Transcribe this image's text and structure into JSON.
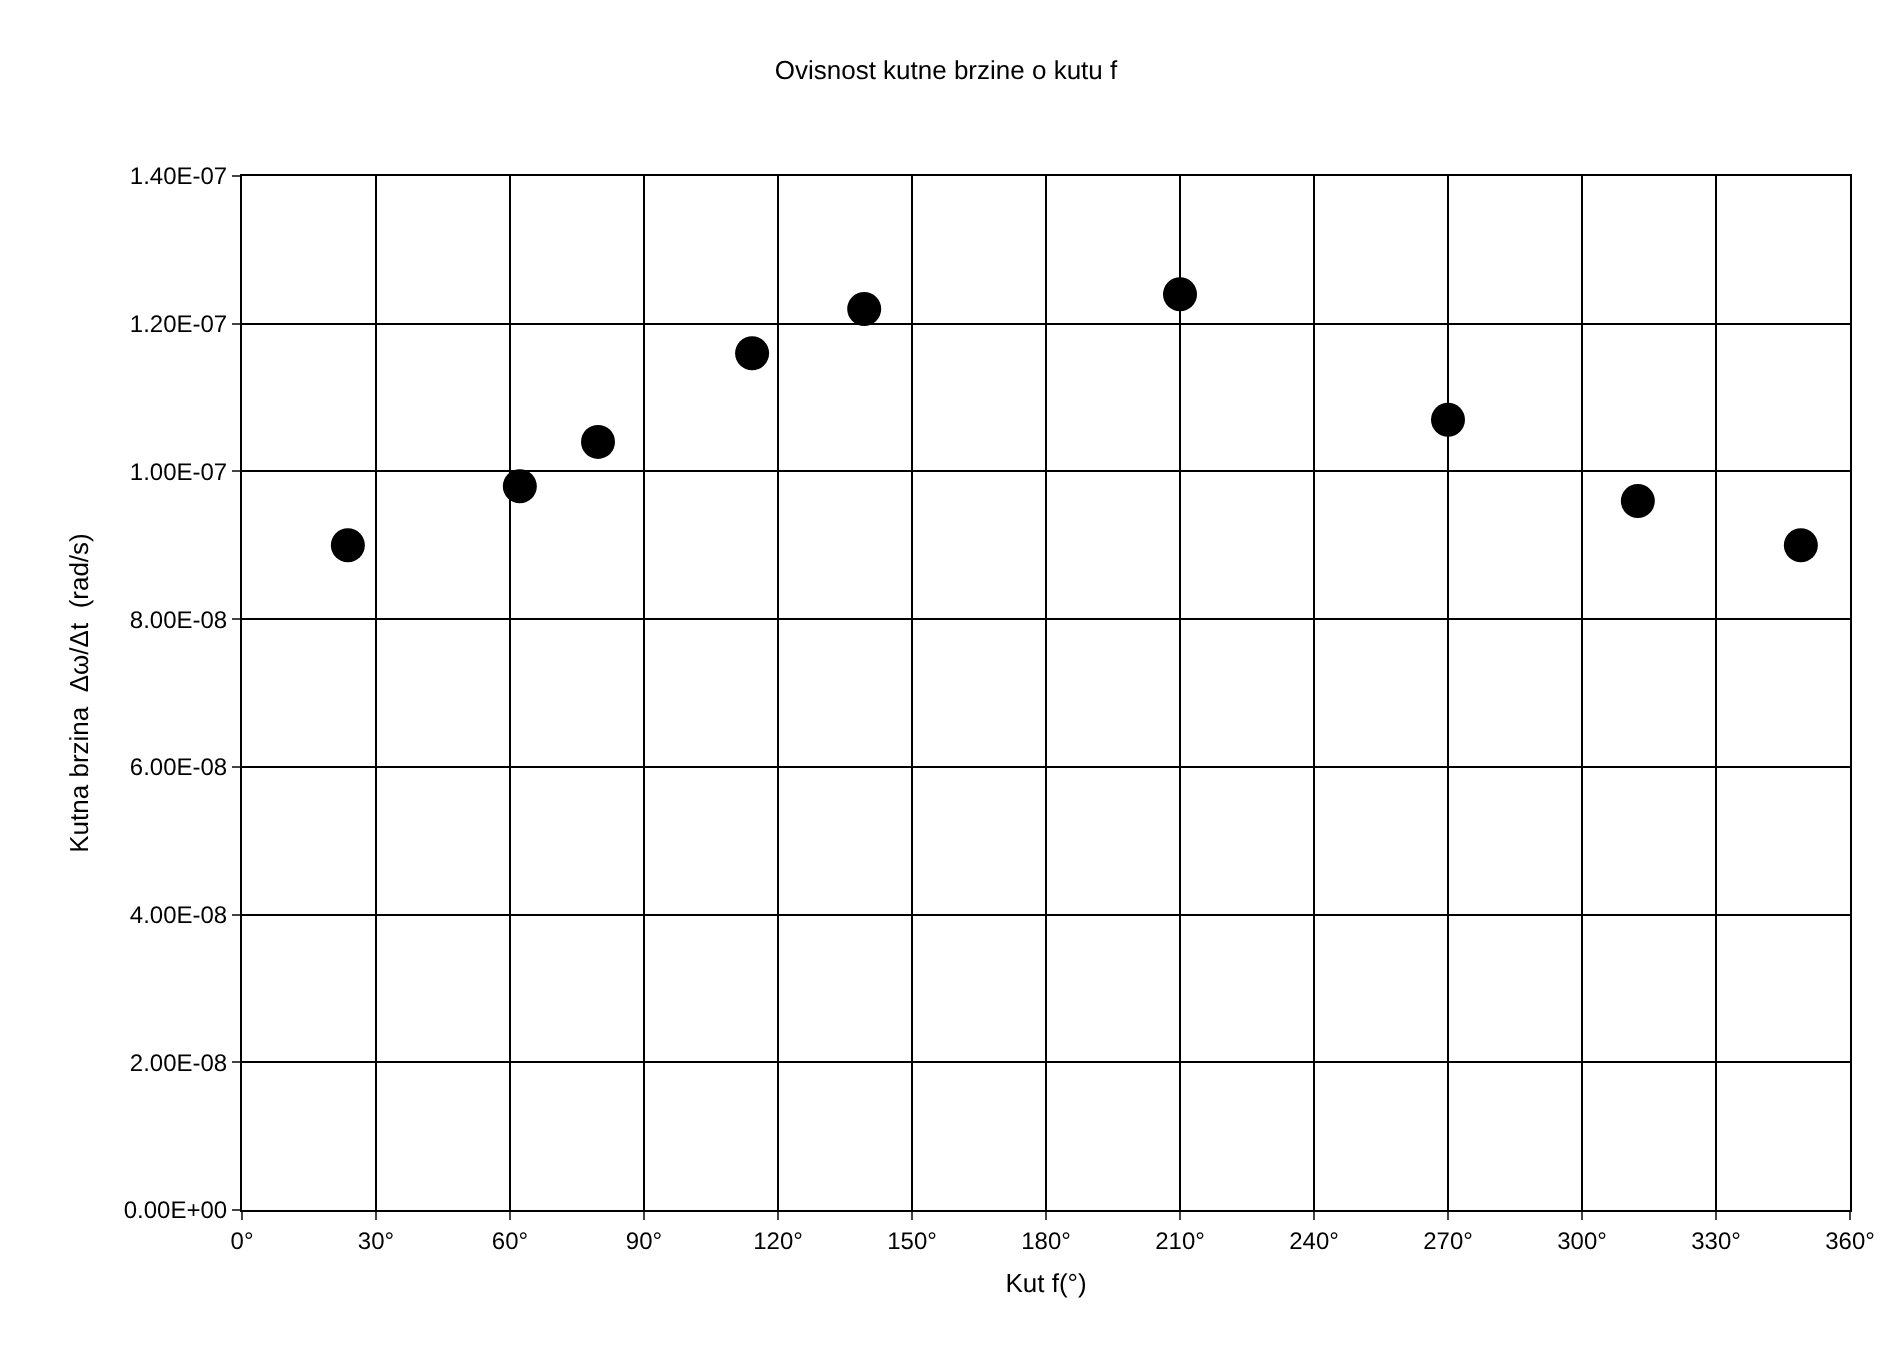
{
  "chart_data": {
    "type": "scatter",
    "title": "Ovisnost kutne brzine o kutu f",
    "xlabel": "Kut f(°)",
    "ylabel": "Kutna brzina  Δω/Δt  (rad/s)",
    "x": [
      23.7,
      62.2,
      79.7,
      114.2,
      139.3,
      210,
      270,
      312.5,
      349
    ],
    "series": [
      {
        "color": "#000000",
        "values": [
          9e-08,
          9.8e-08,
          1.04e-07,
          1.16e-07,
          1.22e-07,
          1.24e-07,
          1.07e-07,
          9.6e-08,
          9e-08
        ]
      }
    ],
    "xlim": [
      0,
      360
    ],
    "xticks": [
      {
        "value": 0,
        "label": "0°"
      },
      {
        "value": 30,
        "label": "30°"
      },
      {
        "value": 60,
        "label": "60°"
      },
      {
        "value": 90,
        "label": "90°"
      },
      {
        "value": 120,
        "label": "120°"
      },
      {
        "value": 150,
        "label": "150°"
      },
      {
        "value": 180,
        "label": "180°"
      },
      {
        "value": 210,
        "label": "210°"
      },
      {
        "value": 240,
        "label": "240°"
      },
      {
        "value": 270,
        "label": "270°"
      },
      {
        "value": 300,
        "label": "300°"
      },
      {
        "value": 330,
        "label": "330°"
      },
      {
        "value": 360,
        "label": "360°"
      }
    ],
    "ylim": [
      0,
      1.4e-07
    ],
    "yticks": [
      {
        "value": 0,
        "label": "0.00E+00"
      },
      {
        "value": 2e-08,
        "label": "2.00E-08"
      },
      {
        "value": 4e-08,
        "label": "4.00E-08"
      },
      {
        "value": 6e-08,
        "label": "6.00E-08"
      },
      {
        "value": 8e-08,
        "label": "8.00E-08"
      },
      {
        "value": 1e-07,
        "label": "1.00E-07"
      },
      {
        "value": 1.2e-07,
        "label": "1.20E-07"
      },
      {
        "value": 1.4e-07,
        "label": "1.40E-07"
      }
    ],
    "grid": true,
    "marker": "circle"
  }
}
